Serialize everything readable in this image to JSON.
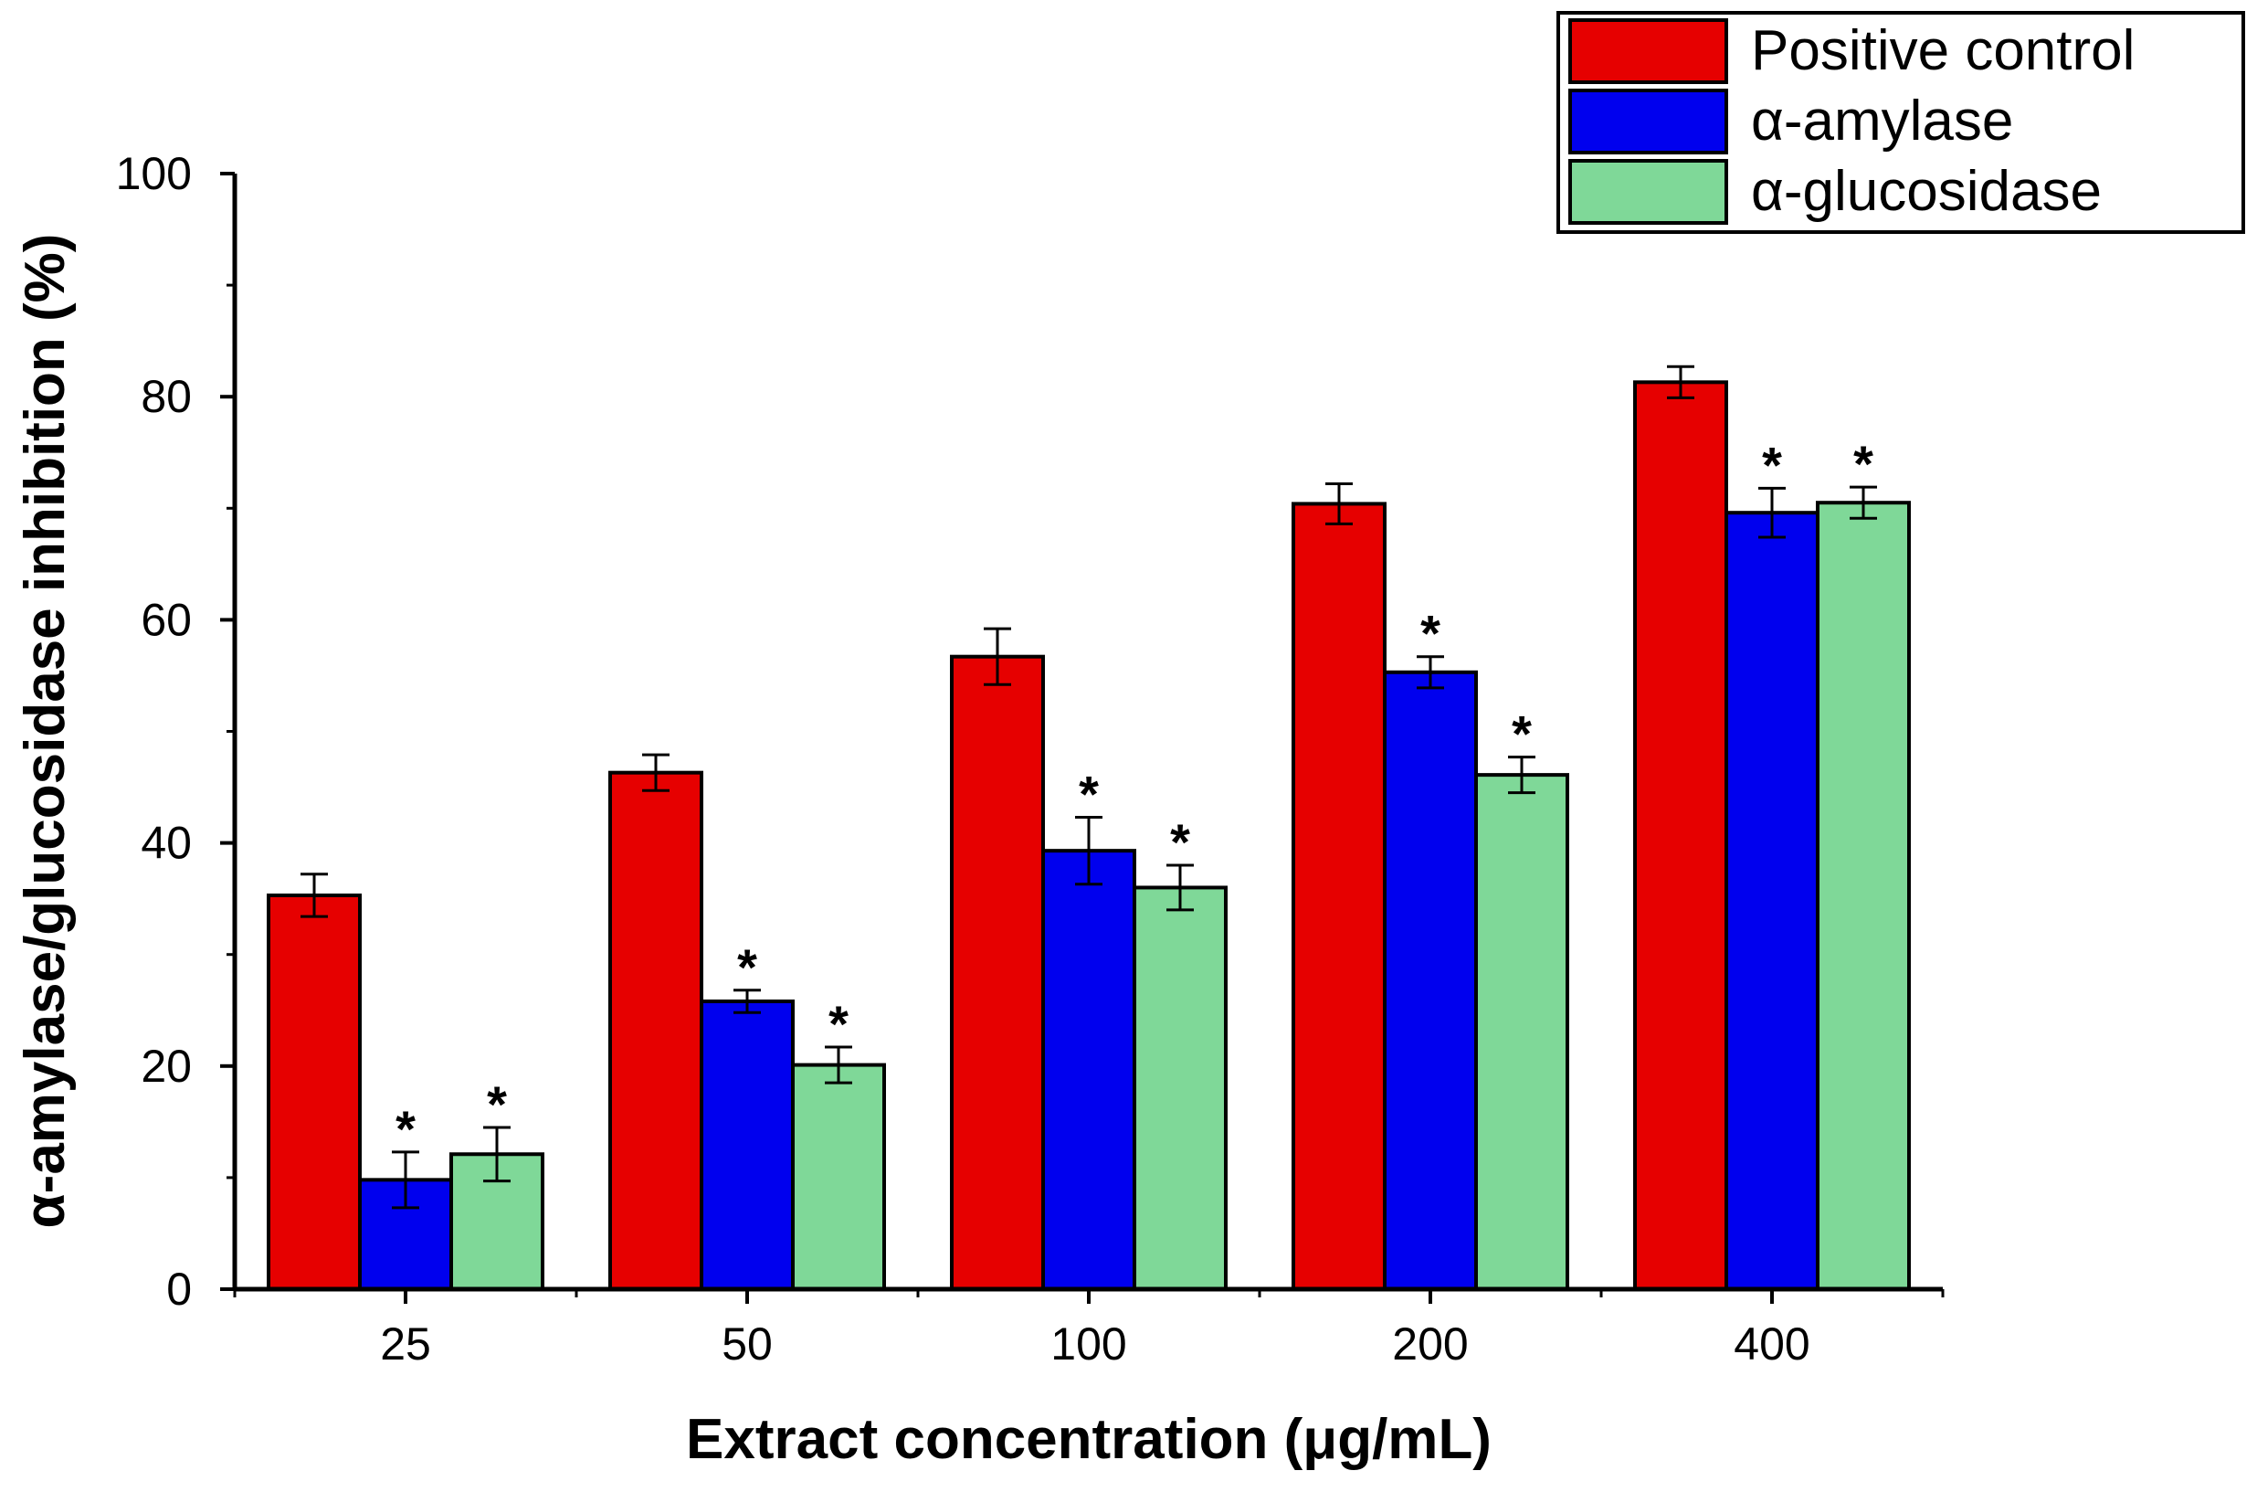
{
  "chart_data": {
    "type": "bar",
    "title": "",
    "xlabel": "Extract concentration (μg/mL)",
    "ylabel": "α-amylase/glucosidase inhibition (%)",
    "categories": [
      "25",
      "50",
      "100",
      "200",
      "400"
    ],
    "ylim": [
      0,
      100
    ],
    "yticks": [
      "0",
      "20",
      "40",
      "60",
      "80",
      "100"
    ],
    "grid": false,
    "legend_position": "top-right",
    "series": [
      {
        "name": "Positive control",
        "color": "#e60000",
        "values": [
          35.3,
          46.3,
          56.7,
          70.4,
          81.3
        ],
        "errors": [
          1.9,
          1.6,
          2.5,
          1.8,
          1.4
        ],
        "significance": [
          "",
          "",
          "",
          "",
          ""
        ]
      },
      {
        "name": "α-amylase",
        "color": "#0000ee",
        "values": [
          9.8,
          25.8,
          39.3,
          55.3,
          69.6
        ],
        "errors": [
          2.5,
          1.0,
          3.0,
          1.4,
          2.2
        ],
        "significance": [
          "*",
          "*",
          "*",
          "*",
          "*"
        ]
      },
      {
        "name": "α-glucosidase",
        "color": "#7fd898",
        "values": [
          12.1,
          20.1,
          36.0,
          46.1,
          70.5
        ],
        "errors": [
          2.4,
          1.6,
          2.0,
          1.6,
          1.4
        ],
        "significance": [
          "*",
          "*",
          "*",
          "*",
          "*"
        ]
      }
    ]
  }
}
